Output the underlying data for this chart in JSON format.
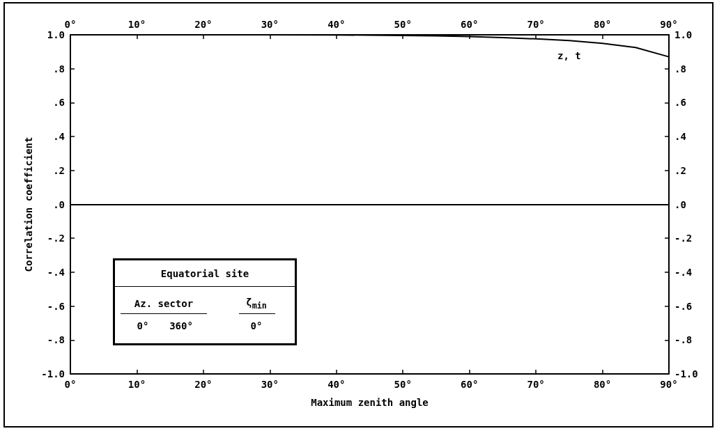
{
  "chart_data": {
    "type": "line",
    "xlabel": "Maximum zenith angle",
    "ylabel": "Correlation coefficient",
    "x": [
      0,
      10,
      20,
      30,
      40,
      45,
      50,
      55,
      60,
      65,
      70,
      75,
      80,
      85,
      90
    ],
    "series": [
      {
        "name": "z, t",
        "color": "#000000",
        "values": [
          1.0,
          1.0,
          1.0,
          1.0,
          0.999,
          0.998,
          0.996,
          0.994,
          0.99,
          0.984,
          0.976,
          0.966,
          0.95,
          0.925,
          0.87
        ]
      }
    ],
    "xlim": [
      0,
      90
    ],
    "xticks": [
      {
        "value": 0,
        "label": "0°"
      },
      {
        "value": 10,
        "label": "10°"
      },
      {
        "value": 20,
        "label": "20°"
      },
      {
        "value": 30,
        "label": "30°"
      },
      {
        "value": 40,
        "label": "40°"
      },
      {
        "value": 50,
        "label": "50°"
      },
      {
        "value": 60,
        "label": "60°"
      },
      {
        "value": 70,
        "label": "70°"
      },
      {
        "value": 80,
        "label": "80°"
      },
      {
        "value": 90,
        "label": "90°"
      }
    ],
    "x2lim": [
      0,
      90
    ],
    "x2ticks": [
      {
        "value": 0,
        "label": "0°"
      },
      {
        "value": 10,
        "label": "10°"
      },
      {
        "value": 20,
        "label": "20°"
      },
      {
        "value": 30,
        "label": "30°"
      },
      {
        "value": 40,
        "label": "40°"
      },
      {
        "value": 50,
        "label": "50°"
      },
      {
        "value": 60,
        "label": "60°"
      },
      {
        "value": 70,
        "label": "70°"
      },
      {
        "value": 80,
        "label": "80°"
      },
      {
        "value": 90,
        "label": "90°"
      }
    ],
    "ylim": [
      -1.0,
      1.0
    ],
    "yticks": [
      {
        "value": -1.0,
        "label": "-1.0"
      },
      {
        "value": -0.8,
        "label": "-.8"
      },
      {
        "value": -0.6,
        "label": "-.6"
      },
      {
        "value": -0.4,
        "label": "-.4"
      },
      {
        "value": -0.2,
        "label": "-.2"
      },
      {
        "value": 0,
        "label": ".0"
      },
      {
        "value": 0.2,
        "label": ".2"
      },
      {
        "value": 0.4,
        "label": ".4"
      },
      {
        "value": 0.6,
        "label": ".6"
      },
      {
        "value": 0.8,
        "label": ".8"
      },
      {
        "value": 1.0,
        "label": "1.0"
      }
    ],
    "y2lim": [
      -1.0,
      1.0
    ],
    "y2ticks": [
      {
        "value": -1.0,
        "label": "-1.0"
      },
      {
        "value": -0.8,
        "label": "-.8"
      },
      {
        "value": -0.6,
        "label": "-.6"
      },
      {
        "value": -0.4,
        "label": "-.4"
      },
      {
        "value": -0.2,
        "label": "-.2"
      },
      {
        "value": 0,
        "label": ".0"
      },
      {
        "value": 0.2,
        "label": ".2"
      },
      {
        "value": 0.4,
        "label": ".4"
      },
      {
        "value": 0.6,
        "label": ".6"
      },
      {
        "value": 0.8,
        "label": ".8"
      },
      {
        "value": 1.0,
        "label": "1.0"
      }
    ],
    "ref_lines": [
      {
        "axis": "y",
        "value": 0,
        "color": "#000000"
      }
    ],
    "annotations": [
      "Equatorial site",
      "Az. sector",
      "ζ$_{min}$",
      "0°",
      "360°",
      "0°"
    ],
    "grid": false,
    "marker": "none",
    "line_style": "solid"
  }
}
